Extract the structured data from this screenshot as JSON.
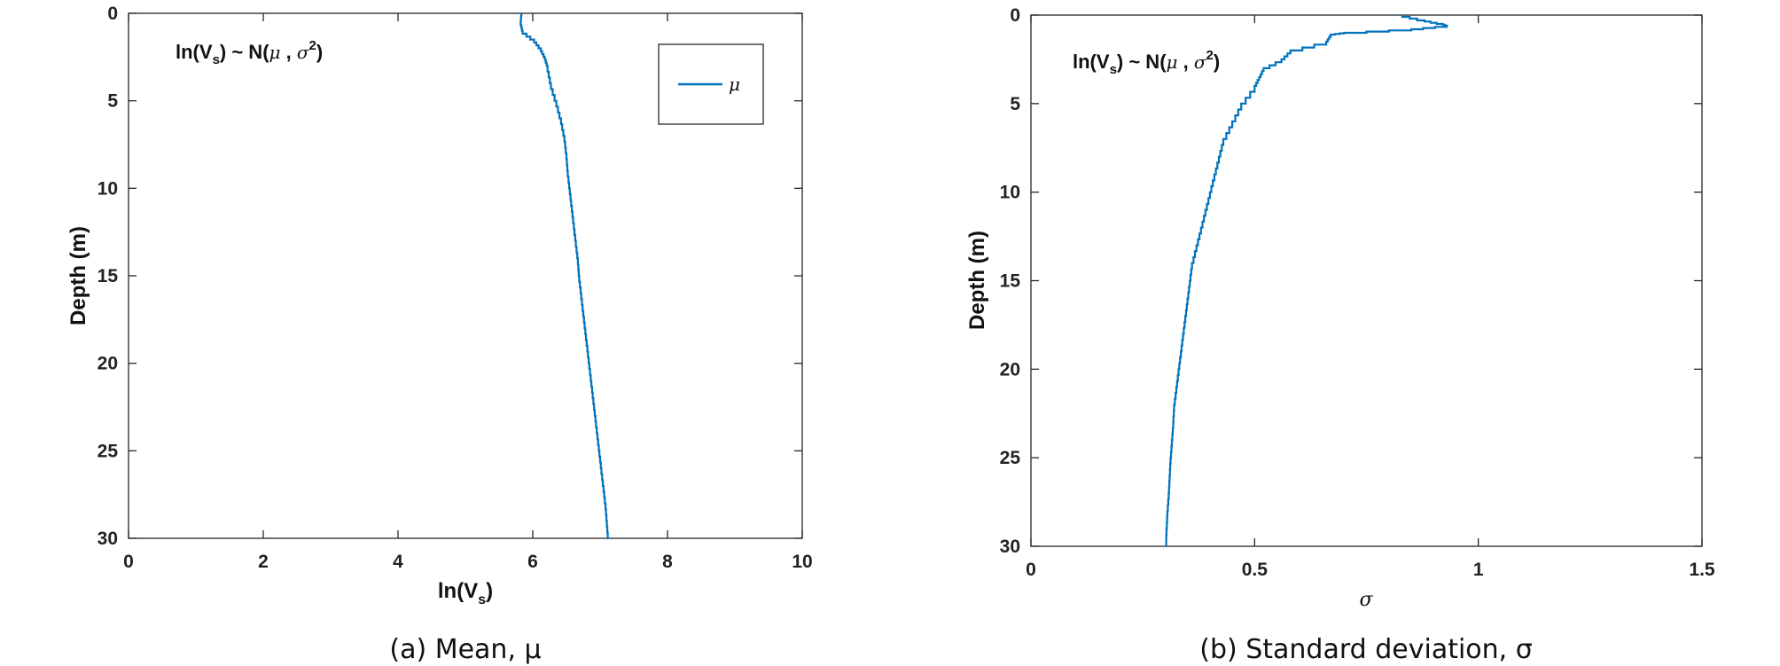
{
  "chart_data": [
    {
      "type": "line",
      "annotation": {
        "prefix": "ln(V",
        "sub": "s",
        "mid": ") ~ N(",
        "mu": "μ",
        "comma": " , ",
        "sigma": "σ",
        "sup": "2",
        "close": ")"
      },
      "xlabel": {
        "main": "ln(V",
        "sub": "s",
        "close": ")"
      },
      "ylabel": "Depth (m)",
      "xlim": [
        0,
        10
      ],
      "ylim": [
        0,
        30
      ],
      "y_reversed": true,
      "xticks": [
        "0",
        "2",
        "4",
        "6",
        "8",
        "10"
      ],
      "yticks": [
        "0",
        "5",
        "10",
        "15",
        "20",
        "25",
        "30"
      ],
      "legend": {
        "entries": [
          "μ"
        ],
        "placement": "top-right"
      },
      "caption": "(a) Mean, μ",
      "color": "#0072BD",
      "series": [
        {
          "name": "μ",
          "depth": [
            0,
            0.5,
            1,
            1.5,
            2,
            2.5,
            3,
            4,
            5,
            6,
            7,
            8,
            9,
            10,
            11,
            12,
            13,
            14,
            15,
            16,
            17,
            18,
            19,
            20,
            21,
            22,
            23,
            24,
            25,
            26,
            27,
            28,
            29,
            30
          ],
          "value": [
            5.83,
            5.82,
            5.85,
            6.02,
            6.12,
            6.18,
            6.22,
            6.27,
            6.35,
            6.42,
            6.47,
            6.5,
            6.52,
            6.55,
            6.58,
            6.61,
            6.64,
            6.67,
            6.69,
            6.72,
            6.75,
            6.78,
            6.81,
            6.84,
            6.87,
            6.9,
            6.93,
            6.96,
            6.99,
            7.02,
            7.05,
            7.08,
            7.1,
            7.12
          ]
        }
      ]
    },
    {
      "type": "line",
      "annotation": {
        "prefix": "ln(V",
        "sub": "s",
        "mid": ") ~ N(",
        "mu": "μ",
        "comma": " , ",
        "sigma": "σ",
        "sup": "2",
        "close": ")"
      },
      "xlabel": "σ",
      "ylabel": "Depth (m)",
      "xlim": [
        0,
        1.5
      ],
      "ylim": [
        0,
        30
      ],
      "y_reversed": true,
      "xticks": [
        "0",
        "0.5",
        "1",
        "1.5"
      ],
      "yticks": [
        "0",
        "5",
        "10",
        "15",
        "20",
        "25",
        "30"
      ],
      "caption": "(b) Standard deviation, σ",
      "color": "#0072BD",
      "series": [
        {
          "name": "σ",
          "depth": [
            0,
            0.3,
            0.5,
            0.6,
            0.8,
            1.0,
            1.1,
            1.5,
            2.0,
            2.5,
            3.0,
            3.5,
            4,
            5,
            6,
            7,
            8,
            9,
            10,
            11,
            12,
            13,
            14,
            15,
            16,
            17,
            18,
            19,
            20,
            21,
            22,
            23,
            24,
            25,
            26,
            27,
            28,
            29,
            30
          ],
          "value": [
            0.83,
            0.88,
            0.92,
            0.93,
            0.85,
            0.7,
            0.67,
            0.66,
            0.58,
            0.56,
            0.52,
            0.51,
            0.5,
            0.47,
            0.45,
            0.43,
            0.42,
            0.41,
            0.4,
            0.39,
            0.38,
            0.37,
            0.36,
            0.355,
            0.35,
            0.345,
            0.34,
            0.335,
            0.33,
            0.325,
            0.32,
            0.318,
            0.315,
            0.312,
            0.31,
            0.308,
            0.305,
            0.303,
            0.302
          ]
        }
      ]
    }
  ]
}
